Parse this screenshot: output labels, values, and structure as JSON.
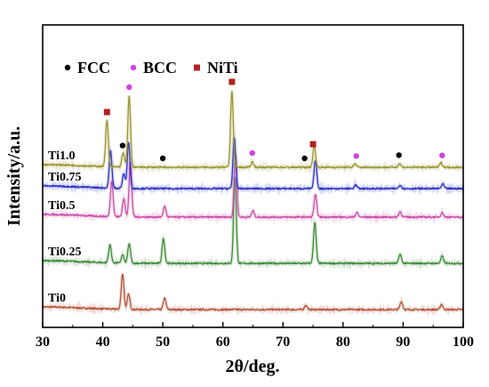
{
  "chart_data": {
    "type": "line",
    "xlabel": "2θ/deg.",
    "ylabel": "Intensity/a.u.",
    "xlim": [
      30,
      100
    ],
    "x_ticks": [
      30,
      40,
      50,
      60,
      70,
      80,
      90,
      100
    ],
    "grid": false,
    "legend": [
      {
        "name": "FCC",
        "marker": "circle",
        "color": "#000000"
      },
      {
        "name": "BCC",
        "marker": "circle",
        "color": "#cc44dd"
      },
      {
        "name": "NiTi",
        "marker": "square",
        "color": "#b22222"
      }
    ],
    "series": [
      {
        "name": "Ti0",
        "color": "#b5543a",
        "baseline": 0,
        "peaks": [
          [
            43.3,
            40
          ],
          [
            44.3,
            17
          ],
          [
            50.3,
            13
          ],
          [
            73.8,
            5
          ],
          [
            89.7,
            9
          ],
          [
            96.4,
            6
          ]
        ]
      },
      {
        "name": "Ti0.25",
        "color": "#3f8c3a",
        "baseline": 52,
        "peaks": [
          [
            41.2,
            20
          ],
          [
            43.3,
            9
          ],
          [
            44.4,
            22
          ],
          [
            50.1,
            28
          ],
          [
            62.0,
            97
          ],
          [
            75.3,
            46
          ],
          [
            89.5,
            10
          ],
          [
            96.5,
            8
          ]
        ]
      },
      {
        "name": "Ti0.5",
        "color": "#cc4fa8",
        "baseline": 104,
        "peaks": [
          [
            41.5,
            40
          ],
          [
            43.5,
            20
          ],
          [
            44.6,
            62
          ],
          [
            50.3,
            12
          ],
          [
            62.1,
            70
          ],
          [
            65.0,
            7
          ],
          [
            75.4,
            25
          ],
          [
            82.3,
            5
          ],
          [
            89.5,
            6
          ],
          [
            96.5,
            5
          ]
        ]
      },
      {
        "name": "Ti0.75",
        "color": "#2a33c8",
        "baseline": 136,
        "peaks": [
          [
            41.3,
            42
          ],
          [
            43.5,
            16
          ],
          [
            44.3,
            52
          ],
          [
            61.9,
            58
          ],
          [
            75.4,
            32
          ],
          [
            82.1,
            4
          ],
          [
            89.5,
            4
          ],
          [
            96.6,
            5
          ]
        ]
      },
      {
        "name": "Ti1.0",
        "color": "#9d9630",
        "baseline": 160,
        "peaks": [
          [
            40.7,
            52
          ],
          [
            43.4,
            16
          ],
          [
            44.4,
            80
          ],
          [
            61.5,
            86
          ],
          [
            64.9,
            6
          ],
          [
            75.2,
            24
          ],
          [
            82.0,
            4
          ],
          [
            89.4,
            4
          ],
          [
            96.3,
            5
          ]
        ]
      }
    ],
    "markers": [
      {
        "phase": "NiTi",
        "x": 40.7
      },
      {
        "phase": "FCC",
        "x": 43.3
      },
      {
        "phase": "BCC",
        "x": 44.4
      },
      {
        "phase": "FCC",
        "x": 50.0
      },
      {
        "phase": "NiTi",
        "x": 61.5
      },
      {
        "phase": "BCC",
        "x": 64.9
      },
      {
        "phase": "FCC",
        "x": 73.6
      },
      {
        "phase": "NiTi",
        "x": 75.0
      },
      {
        "phase": "BCC",
        "x": 82.2
      },
      {
        "phase": "FCC",
        "x": 89.3
      },
      {
        "phase": "BCC",
        "x": 96.5
      }
    ]
  }
}
